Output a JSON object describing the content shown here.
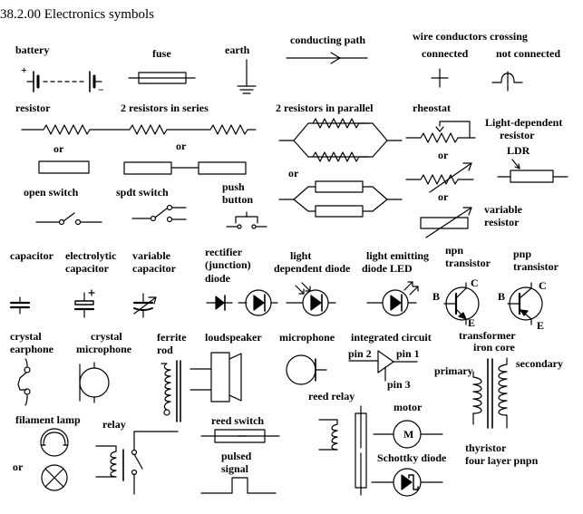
{
  "title": "38.2.00 Electronics symbols",
  "labels": {
    "battery": "battery",
    "plus": "+",
    "minus": "−",
    "fuse": "fuse",
    "earth": "earth",
    "conducting_path": "conducting path",
    "wire_crossing": "wire conductors crossing",
    "connected": "connected",
    "not_connected": "not connected",
    "resistor": "resistor",
    "or": "or",
    "series": "2 resistors in series",
    "parallel": "2 resistors in parallel",
    "rheostat": "rheostat",
    "ldr_line1": "Light-dependent",
    "ldr_line2": "resistor",
    "ldr": "LDR",
    "variable_resistor_line1": "variable",
    "variable_resistor_line2": "resistor",
    "open_switch": "open switch",
    "spdt_switch": "spdt switch",
    "push_line1": "push",
    "push_line2": "button",
    "capacitor": "capacitor",
    "electrolytic_line1": "electrolytic",
    "electrolytic_line2": "capacitor",
    "variable_cap_line1": "variable",
    "variable_cap_line2": "capacitor",
    "rectifier_line1": "rectifier",
    "rectifier_line2": "(junction)",
    "rectifier_line3": "diode",
    "ldd_line1": "light",
    "ldd_line2": "dependent diode",
    "led_line1": "light emitting",
    "led_line2": "diode LED",
    "npn_line1": "npn",
    "npn_line2": "transistor",
    "pnp_line1": "pnp",
    "pnp_line2": "transistor",
    "B": "B",
    "C": "C",
    "E": "E",
    "crystal_earphone_line1": "crystal",
    "crystal_earphone_line2": "earphone",
    "crystal_mic_line1": "crystal",
    "crystal_mic_line2": "microphone",
    "ferrite_line1": "ferrite",
    "ferrite_line2": "rod",
    "loudspeaker": "loudspeaker",
    "microphone": "microphone",
    "ic": "integrated circuit",
    "pin2": "pin 2",
    "pin1": "pin 1",
    "pin3": "pin 3",
    "transformer_line1": "transformer",
    "transformer_line2": "iron core",
    "primary": "primary",
    "secondary": "secondary",
    "filament_lamp": "filament lamp",
    "relay": "relay",
    "reed_switch": "reed switch",
    "reed_relay": "reed relay",
    "motor": "motor",
    "M": "M",
    "pulsed_line1": "pulsed",
    "pulsed_line2": "signal",
    "schottky": "Schottky diode",
    "thyristor_line1": "thyristor",
    "thyristor_line2": "four layer pnpn"
  },
  "colors": {
    "ink": "#000000",
    "background": "#ffffff"
  }
}
